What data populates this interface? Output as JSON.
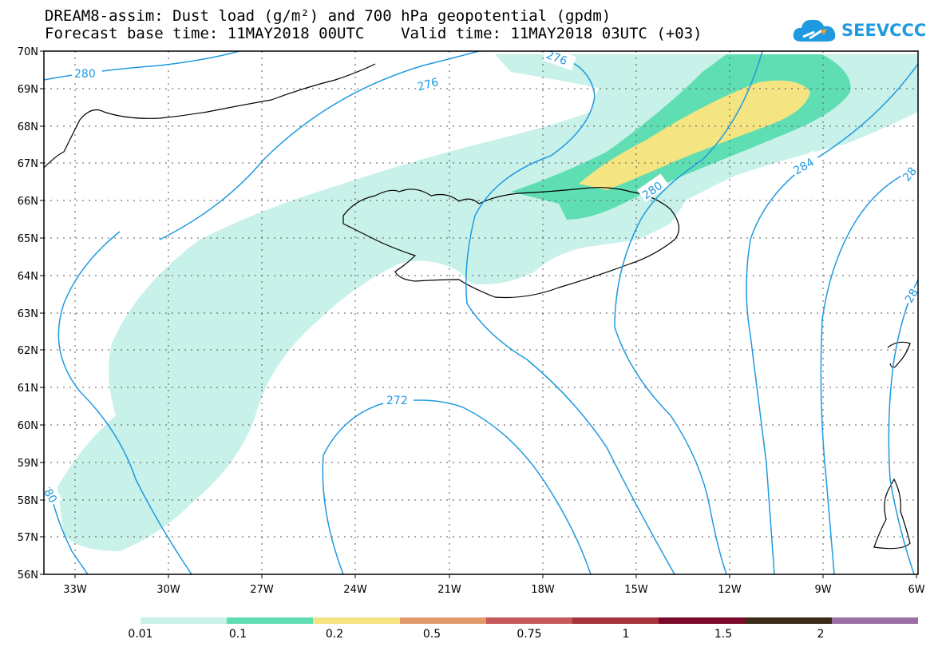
{
  "title": {
    "line1": "DREAM8-assim: Dust load (g/m²) and 700 hPa geopotential (gpdm)",
    "line2": "Forecast base time: 11MAY2018 00UTC    Valid time: 11MAY2018 03UTC (+03)"
  },
  "logo": {
    "text": "SEEVCCC",
    "icon": "cloud-icon"
  },
  "axes": {
    "lat_labels": [
      "70N",
      "69N",
      "68N",
      "67N",
      "66N",
      "65N",
      "64N",
      "63N",
      "62N",
      "61N",
      "60N",
      "59N",
      "58N",
      "57N",
      "56N"
    ],
    "lon_labels": [
      "33W",
      "30W",
      "27W",
      "24W",
      "21W",
      "18W",
      "15W",
      "12W",
      "9W",
      "6W"
    ]
  },
  "contour_labels": [
    "280",
    "276",
    "276",
    "280",
    "284",
    "28",
    "272",
    "28",
    "80"
  ],
  "colorbar": {
    "colors": [
      "#c8f1ea",
      "#5fdeb3",
      "#f4e482",
      "#e29a6c",
      "#c6595a",
      "#a8333c",
      "#7a0a2a",
      "#3b2a16",
      "#9b6ea6"
    ],
    "labels": [
      "0.01",
      "0.1",
      "0.2",
      "0.5",
      "0.75",
      "1",
      "1.5",
      "2"
    ]
  },
  "colors": {
    "contour": "#1f9ae0",
    "dust_low": "#c8f1ea",
    "dust_mid": "#5fdeb3",
    "dust_high": "#f4e482",
    "coast": "#000000"
  }
}
